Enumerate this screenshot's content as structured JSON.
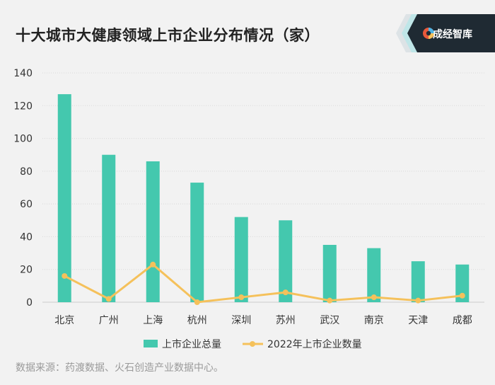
{
  "title": "十大城市大健康领域上市企业分布情况（家）",
  "brand": {
    "name": "成经智库",
    "logo": "colorful-c-logo"
  },
  "source": "数据来源：药渡数据、火石创造产业数据中心。",
  "colors": {
    "bar": "#44c8ae",
    "line": "#f5c15b",
    "axis": "#cccccc",
    "grid": "#d9d9d9",
    "text": "#333333"
  },
  "chart_data": {
    "type": "bar",
    "categories": [
      "北京",
      "广州",
      "上海",
      "杭州",
      "深圳",
      "苏州",
      "武汉",
      "南京",
      "天津",
      "成都"
    ],
    "series": [
      {
        "name": "上市企业总量",
        "kind": "bar",
        "values": [
          127,
          90,
          86,
          73,
          52,
          50,
          35,
          33,
          25,
          23
        ]
      },
      {
        "name": "2022年上市企业数量",
        "kind": "line",
        "values": [
          16,
          2,
          23,
          0,
          3,
          6,
          1,
          3,
          1,
          4
        ]
      }
    ],
    "yticks": [
      0,
      20,
      40,
      60,
      80,
      100,
      120,
      140
    ],
    "ylim": [
      0,
      140
    ],
    "grid": true,
    "legend": "bottom-center"
  }
}
